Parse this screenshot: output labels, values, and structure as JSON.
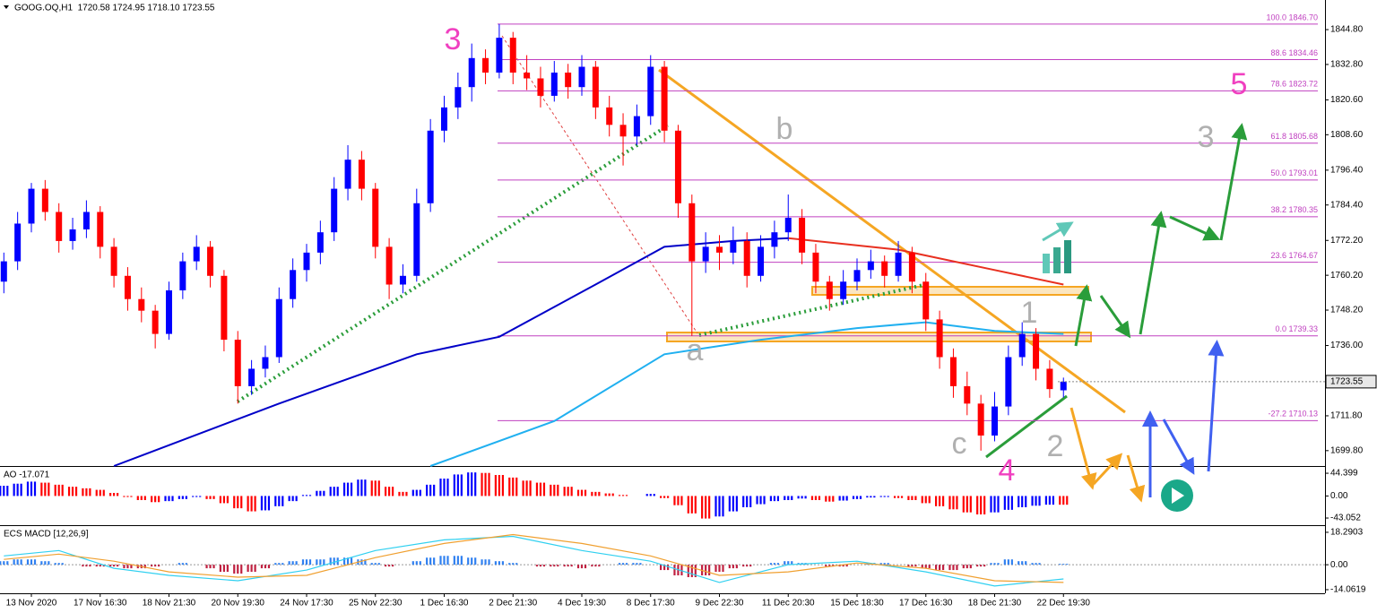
{
  "chart_data": {
    "type": "candlestick",
    "header": "GOOG.OQ,H1  1720.58 1724.95 1718.10 1723.55",
    "categories": [
      null,
      null,
      "13 Nov 2020",
      null,
      null,
      null,
      null,
      "17 Nov 16:30",
      null,
      null,
      null,
      null,
      "18 Nov 21:30",
      null,
      null,
      null,
      null,
      "20 Nov 19:30",
      null,
      null,
      null,
      null,
      "24 Nov 17:30",
      null,
      null,
      null,
      null,
      "25 Nov 22:30",
      null,
      null,
      null,
      null,
      "1 Dec 16:30",
      null,
      null,
      null,
      null,
      "2 Dec 21:30",
      null,
      null,
      null,
      null,
      "4 Dec 19:30",
      null,
      null,
      null,
      null,
      "8 Dec 17:30",
      null,
      null,
      null,
      null,
      "9 Dec 22:30",
      null,
      null,
      null,
      null,
      "11 Dec 20:30",
      null,
      null,
      null,
      null,
      "15 Dec 18:30",
      null,
      null,
      null,
      null,
      "17 Dec 16:30",
      null,
      null,
      null,
      null,
      "18 Dec 21:30",
      null,
      null,
      null,
      null,
      "22 Dec 19:30"
    ],
    "open": [
      1758,
      1765,
      1778,
      1790,
      1782,
      1772,
      1776,
      1782,
      1770,
      1760,
      1752,
      1748,
      1740,
      1755,
      1765,
      1770,
      1760,
      1738,
      1722,
      1728,
      1732,
      1752,
      1762,
      1768,
      1775,
      1790,
      1800,
      1790,
      1770,
      1757,
      1760,
      1785,
      1810,
      1818,
      1825,
      1835,
      1830,
      1842,
      1830,
      1828,
      1822,
      1830,
      1825,
      1832,
      1818,
      1812,
      1808,
      1815,
      1832,
      1810,
      1785,
      1765,
      1770,
      1768,
      1772,
      1760,
      1770,
      1775,
      1780,
      1768,
      1758,
      1752,
      1758,
      1762,
      1765,
      1760,
      1768,
      1758,
      1745,
      1732,
      1722,
      1716,
      1705,
      1715,
      1732,
      1740,
      1728,
      1720.58
    ],
    "high": [
      1768,
      1782,
      1792,
      1793,
      1785,
      1780,
      1786,
      1784,
      1773,
      1763,
      1756,
      1750,
      1758,
      1768,
      1774,
      1772,
      1762,
      1741,
      1731,
      1736,
      1756,
      1766,
      1771,
      1779,
      1794,
      1805,
      1803,
      1792,
      1773,
      1764,
      1790,
      1814,
      1822,
      1830,
      1840,
      1838,
      1846.7,
      1844,
      1836,
      1832,
      1834,
      1833,
      1836,
      1834,
      1822,
      1816,
      1819,
      1836,
      1834,
      1812,
      1788,
      1775,
      1774,
      1777,
      1775,
      1774,
      1779,
      1788,
      1783,
      1771,
      1760,
      1762,
      1766,
      1769,
      1767,
      1772,
      1770,
      1761,
      1748,
      1735,
      1727,
      1719,
      1720,
      1736,
      1744,
      1742,
      1731,
      1724.95
    ],
    "low": [
      1754,
      1762,
      1775,
      1779,
      1768,
      1769,
      1773,
      1766,
      1756,
      1748,
      1744,
      1735,
      1738,
      1752,
      1762,
      1756,
      1734,
      1716,
      1719,
      1725,
      1730,
      1749,
      1758,
      1764,
      1772,
      1786,
      1786,
      1766,
      1752,
      1754,
      1758,
      1782,
      1806,
      1814,
      1820,
      1826,
      1828,
      1826,
      1824,
      1818,
      1820,
      1821,
      1822,
      1814,
      1808,
      1798,
      1805,
      1812,
      1806,
      1780,
      1739.33,
      1761,
      1762,
      1764,
      1756,
      1758,
      1766,
      1772,
      1764,
      1754,
      1748,
      1750,
      1755,
      1759,
      1756,
      1758,
      1754,
      1741,
      1728,
      1718,
      1712,
      1699.8,
      1703,
      1712,
      1729,
      1724,
      1718,
      1718.1
    ],
    "close": [
      1765,
      1778,
      1790,
      1782,
      1772,
      1776,
      1782,
      1770,
      1760,
      1752,
      1748,
      1740,
      1755,
      1765,
      1770,
      1760,
      1738,
      1722,
      1728,
      1732,
      1752,
      1762,
      1768,
      1775,
      1790,
      1800,
      1790,
      1770,
      1757,
      1760,
      1785,
      1810,
      1818,
      1825,
      1835,
      1830,
      1842,
      1830,
      1828,
      1822,
      1830,
      1825,
      1832,
      1818,
      1812,
      1808,
      1815,
      1832,
      1810,
      1785,
      1765,
      1770,
      1768,
      1772,
      1760,
      1770,
      1775,
      1780,
      1768,
      1758,
      1752,
      1758,
      1762,
      1765,
      1760,
      1768,
      1758,
      1745,
      1732,
      1722,
      1716,
      1705,
      1715,
      1732,
      1740,
      1728,
      1721,
      1723.55
    ],
    "up_color": "#0000ff",
    "down_color": "#ff0000",
    "ylim": [
      1694.5,
      1855.0
    ],
    "yticks": [
      {
        "value": 1844.8,
        "label": "1844.80"
      },
      {
        "value": 1832.8,
        "label": "1832.80"
      },
      {
        "value": 1820.6,
        "label": "1820.60"
      },
      {
        "value": 1808.6,
        "label": "1808.60"
      },
      {
        "value": 1796.4,
        "label": "1796.40"
      },
      {
        "value": 1784.4,
        "label": "1784.40"
      },
      {
        "value": 1772.2,
        "label": "1772.20"
      },
      {
        "value": 1760.2,
        "label": "1760.20"
      },
      {
        "value": 1748.2,
        "label": "1748.20"
      },
      {
        "value": 1736.0,
        "label": "1736.00"
      },
      {
        "value": 1711.8,
        "label": "1711.80"
      },
      {
        "value": 1699.8,
        "label": "1699.80"
      }
    ],
    "last_price": {
      "value": 1723.55,
      "label": "1723.55"
    },
    "fib_color": "#c040c0",
    "fib_levels": [
      {
        "value": 1846.7,
        "label": "100.0 1846.70"
      },
      {
        "value": 1834.46,
        "label": "88.6 1834.46"
      },
      {
        "value": 1823.72,
        "label": "78.6 1823.72"
      },
      {
        "value": 1805.68,
        "label": "61.8 1805.68"
      },
      {
        "value": 1793.01,
        "label": "50.0 1793.01"
      },
      {
        "value": 1780.35,
        "label": "38.2 1780.35"
      },
      {
        "value": 1764.67,
        "label": "23.6 1764.67"
      },
      {
        "value": 1739.33,
        "label": "0.0 1739.33"
      },
      {
        "value": 1710.13,
        "label": "-27.2 1710.13"
      }
    ],
    "ma_lines": [
      {
        "color": "#0000c8",
        "x": [
          8,
          20,
          30,
          36,
          43,
          48,
          53,
          57
        ],
        "values": [
          1694.5,
          1716,
          1733,
          1739,
          1757,
          1770,
          1772,
          1773
        ]
      },
      {
        "color": "#e83020",
        "x": [
          57,
          65,
          72,
          77
        ],
        "values": [
          1773,
          1769,
          1762,
          1757
        ]
      },
      {
        "color": "#20b0f0",
        "x": [
          31,
          40,
          48,
          55,
          62,
          67,
          72,
          77
        ],
        "values": [
          1694.5,
          1710,
          1733,
          1738,
          1742,
          1744,
          1741,
          1740
        ]
      }
    ],
    "wave_labels": [
      "3",
      "b",
      "a",
      "c",
      "1",
      "2",
      "4",
      "5",
      "3"
    ],
    "ao": {
      "title": "AO -17.071",
      "values": [
        20,
        24,
        28,
        26,
        22,
        18,
        15,
        12,
        6,
        -2,
        -8,
        -12,
        -10,
        -6,
        -2,
        -6,
        -14,
        -24,
        -30,
        -28,
        -20,
        -10,
        2,
        10,
        18,
        26,
        32,
        30,
        18,
        8,
        12,
        22,
        34,
        42,
        46,
        45,
        41,
        36,
        30,
        26,
        22,
        18,
        12,
        8,
        5,
        2,
        0,
        4,
        -4,
        -18,
        -34,
        -44,
        -40,
        -30,
        -22,
        -16,
        -10,
        -8,
        -5,
        -8,
        -11,
        -9,
        -6,
        -3,
        -2,
        -4,
        -8,
        -14,
        -20,
        -26,
        -32,
        -36,
        -32,
        -27,
        -22,
        -19,
        -17,
        -17.071
      ],
      "ylim": [
        -57,
        55
      ],
      "yticks": [
        44.399,
        {
          "value": 0,
          "label": "0.00"
        },
        -43.052
      ]
    },
    "macd": {
      "title": "ECS MACD [12,26,9]",
      "histogram": [
        2,
        3,
        3,
        2,
        1,
        0,
        -1,
        -1,
        -1,
        -2,
        -2,
        -1,
        0,
        1,
        0,
        -2,
        -4,
        -5,
        -4,
        -2,
        1,
        2,
        3,
        3,
        4,
        4,
        3,
        1,
        -1,
        0,
        2,
        4,
        5,
        5,
        4,
        3,
        2,
        1,
        0,
        -1,
        -1,
        -1,
        -2,
        -1,
        0,
        1,
        1,
        0,
        -3,
        -6,
        -7,
        -6,
        -4,
        -2,
        -1,
        0,
        1,
        2,
        1,
        0,
        -1,
        -1,
        0,
        1,
        1,
        0,
        -1,
        -2,
        -3,
        -3,
        -2,
        -1,
        1,
        3,
        2,
        1,
        0,
        0.5
      ],
      "lines": [
        {
          "color": "#30d0f0",
          "x": [
            0,
            4,
            8,
            12,
            17,
            22,
            27,
            32,
            37,
            42,
            47,
            52,
            57,
            62,
            67,
            72,
            77
          ],
          "values": [
            5,
            8,
            -2,
            -6,
            -9,
            -3,
            8,
            14,
            16,
            8,
            2,
            -10,
            0,
            2,
            -4,
            -12,
            -8
          ]
        },
        {
          "color": "#f0a030",
          "x": [
            0,
            4,
            8,
            12,
            17,
            22,
            27,
            32,
            37,
            42,
            47,
            52,
            57,
            62,
            67,
            72,
            77
          ],
          "values": [
            3,
            6,
            2,
            -4,
            -7,
            -6,
            4,
            12,
            17,
            12,
            5,
            -6,
            -4,
            1,
            -2,
            -9,
            -10
          ]
        }
      ],
      "ylim": [
        -16.1,
        21.3
      ],
      "yticks": [
        18.2903,
        {
          "value": 0,
          "label": "0.00"
        },
        -14.0619
      ]
    }
  }
}
